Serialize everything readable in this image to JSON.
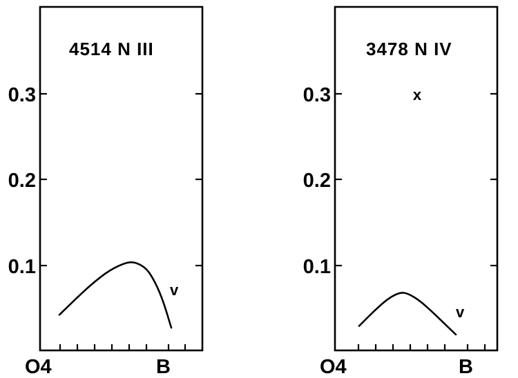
{
  "chart_data": [
    {
      "type": "line",
      "title": "4514 N III",
      "xlabel": "",
      "ylabel": "",
      "x_tick_labels": [
        "O4",
        "B"
      ],
      "y_ticks": [
        "0.1",
        "0.2",
        "0.3"
      ],
      "ylim": [
        0,
        0.38
      ],
      "grid": false,
      "series": [
        {
          "label": "v",
          "points": [
            [
              0.0,
              0.043
            ],
            [
              0.15,
              0.062
            ],
            [
              0.3,
              0.08
            ],
            [
              0.45,
              0.095
            ],
            [
              0.6,
              0.104
            ],
            [
              0.68,
              0.104
            ],
            [
              0.78,
              0.097
            ],
            [
              0.86,
              0.08
            ],
            [
              0.93,
              0.058
            ],
            [
              1.0,
              0.028
            ]
          ]
        }
      ],
      "annotations": []
    },
    {
      "type": "line",
      "title": "3478 N IV",
      "xlabel": "",
      "ylabel": "",
      "x_tick_labels": [
        "O4",
        "B"
      ],
      "y_ticks": [
        "0.1",
        "0.2",
        "0.3"
      ],
      "ylim": [
        0,
        0.38
      ],
      "grid": false,
      "series": [
        {
          "label": "v",
          "points": [
            [
              0.0,
              0.03
            ],
            [
              0.15,
              0.047
            ],
            [
              0.3,
              0.062
            ],
            [
              0.42,
              0.069
            ],
            [
              0.5,
              0.068
            ],
            [
              0.62,
              0.06
            ],
            [
              0.75,
              0.047
            ],
            [
              0.88,
              0.033
            ],
            [
              1.0,
              0.02
            ]
          ]
        }
      ],
      "annotations": [
        {
          "text": "x",
          "x": 0.6,
          "y": 0.298
        }
      ]
    }
  ]
}
